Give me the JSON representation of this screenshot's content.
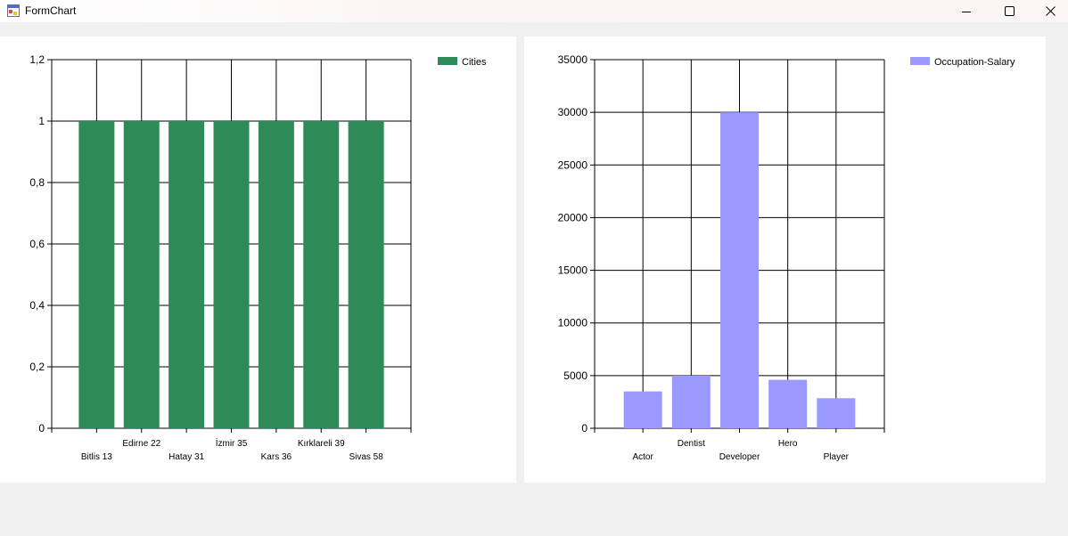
{
  "window": {
    "title": "FormChart",
    "minimize_icon": "minimize-icon",
    "maximize_icon": "maximize-icon",
    "close_icon": "close-icon"
  },
  "chart_data": [
    {
      "type": "bar",
      "title": "",
      "xlabel": "",
      "ylabel": "",
      "categories": [
        "Bitlis 13",
        "Edirne 22",
        "Hatay 31",
        "İzmir 35",
        "Kars 36",
        "Kırklareli 39",
        "Sivas 58"
      ],
      "series": [
        {
          "name": "Cities",
          "values": [
            1,
            1,
            1,
            1,
            1,
            1,
            1
          ],
          "color": "#2e8b57"
        }
      ],
      "ylim": [
        0,
        1.2
      ],
      "yticks": [
        "0",
        "0,2",
        "0,4",
        "0,6",
        "0,8",
        "1",
        "1,2"
      ],
      "grid": true,
      "legend": "top-right"
    },
    {
      "type": "bar",
      "title": "",
      "xlabel": "",
      "ylabel": "",
      "categories": [
        "Actor",
        "Dentist",
        "Developer",
        "Hero",
        "Player"
      ],
      "series": [
        {
          "name": "Occupation-Salary",
          "values": [
            3500,
            5000,
            30000,
            4600,
            2850
          ],
          "color": "#9999ff"
        }
      ],
      "ylim": [
        0,
        35000
      ],
      "yticks": [
        "0",
        "5000",
        "10000",
        "15000",
        "20000",
        "25000",
        "30000",
        "35000"
      ],
      "grid": true,
      "legend": "top-right"
    }
  ]
}
